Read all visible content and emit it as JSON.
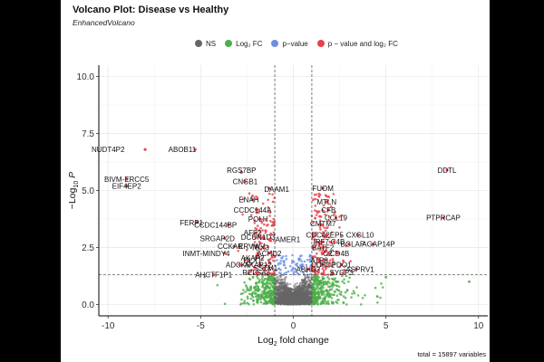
{
  "chart_data": {
    "type": "scatter",
    "title": "Volcano Plot: Disease vs Healthy",
    "subtitle": "EnhancedVolcano",
    "xlabel": "Log2 fold change",
    "ylabel": "-Log10 P",
    "xlim": [
      -10.5,
      10.5
    ],
    "ylim": [
      -0.5,
      10.5
    ],
    "x_ticks": [
      -10,
      -5,
      0,
      5,
      10
    ],
    "y_ticks": [
      0.0,
      2.5,
      5.0,
      7.5,
      10.0
    ],
    "y_tick_labels": [
      "0.0",
      "2.5",
      "5.0",
      "7.5",
      "10.0"
    ],
    "fc_cutoff": 1,
    "p_cutoff_log10": 1.3,
    "legend": [
      {
        "key": "NS",
        "label": "NS",
        "color": "#666666"
      },
      {
        "key": "FC",
        "label": "Log₂ FC",
        "color": "#4daf4a"
      },
      {
        "key": "P",
        "label": "p−value",
        "color": "#6d8ee4"
      },
      {
        "key": "PFC",
        "label": "p − value and log₂ FC",
        "color": "#e8414a"
      }
    ],
    "caption": "total = 15897 variables",
    "labeled_points": [
      {
        "name": "NUDT4P2",
        "x": -8.0,
        "y": 6.8,
        "lx": -10.0,
        "ly": 6.8
      },
      {
        "name": "ABOB11",
        "x": -5.3,
        "y": 6.8,
        "lx": -6.0,
        "ly": 6.8
      },
      {
        "name": "BIVM-ERCC5",
        "x": -9.0,
        "y": 5.5,
        "lx": -9.0,
        "ly": 5.5
      },
      {
        "name": "EIF4EP2",
        "x": -9.0,
        "y": 5.2,
        "lx": -9.0,
        "ly": 5.2
      },
      {
        "name": "RGS7BP",
        "x": -2.8,
        "y": 5.8,
        "lx": -2.8,
        "ly": 5.9
      },
      {
        "name": "CNGB1",
        "x": -2.6,
        "y": 5.4,
        "lx": -2.6,
        "ly": 5.4
      },
      {
        "name": "DAAM1",
        "x": -1.3,
        "y": 5.1,
        "lx": -0.9,
        "ly": 5.05
      },
      {
        "name": "ENAH",
        "x": -2.2,
        "y": 4.6,
        "lx": -2.4,
        "ly": 4.6
      },
      {
        "name": "CCDC144A",
        "x": -2.0,
        "y": 4.15,
        "lx": -2.2,
        "ly": 4.15
      },
      {
        "name": "POLH",
        "x": -1.8,
        "y": 3.75,
        "lx": -1.9,
        "ly": 3.75
      },
      {
        "name": "FERP1",
        "x": -5.2,
        "y": 3.6,
        "lx": -5.5,
        "ly": 3.6
      },
      {
        "name": "CCDC144BP",
        "x": -3.5,
        "y": 3.5,
        "lx": -4.2,
        "ly": 3.5
      },
      {
        "name": "AFF2",
        "x": -2.0,
        "y": 3.15,
        "lx": -2.2,
        "ly": 3.15
      },
      {
        "name": "DCUN1D3",
        "x": -1.6,
        "y": 2.95,
        "lx": -1.9,
        "ly": 2.95
      },
      {
        "name": "SRGAP2D",
        "x": -3.7,
        "y": 2.9,
        "lx": -4.1,
        "ly": 2.9
      },
      {
        "name": "AMER1",
        "x": -1.3,
        "y": 2.85,
        "lx": -0.3,
        "ly": 2.85
      },
      {
        "name": "CCKAR",
        "x": -3.2,
        "y": 2.55,
        "lx": -3.4,
        "ly": 2.55
      },
      {
        "name": "ERVW-1",
        "x": -2.0,
        "y": 2.55,
        "lx": -2.2,
        "ly": 2.55
      },
      {
        "name": "TBX3",
        "x": -1.6,
        "y": 2.5,
        "lx": -1.8,
        "ly": 2.5
      },
      {
        "name": "INMT-MINDY4",
        "x": -3.7,
        "y": 2.25,
        "lx": -4.7,
        "ly": 2.25
      },
      {
        "name": "ACHD2",
        "x": -1.3,
        "y": 2.25,
        "lx": -1.3,
        "ly": 2.25
      },
      {
        "name": "AKAP2",
        "x": -2.0,
        "y": 2.05,
        "lx": -2.2,
        "ly": 2.05
      },
      {
        "name": "DLX1",
        "x": -2.6,
        "y": 1.95,
        "lx": -2.2,
        "ly": 1.95
      },
      {
        "name": "ADCK5",
        "x": -2.9,
        "y": 1.75,
        "lx": -3.0,
        "ly": 1.75
      },
      {
        "name": "AKAP12",
        "x": -1.8,
        "y": 1.75,
        "lx": -1.9,
        "ly": 1.75
      },
      {
        "name": "SSTM1",
        "x": -1.6,
        "y": 1.6,
        "lx": -1.5,
        "ly": 1.6
      },
      {
        "name": "AHCTF1P1",
        "x": -4.3,
        "y": 1.3,
        "lx": -4.3,
        "ly": 1.3
      },
      {
        "name": "RELSA3",
        "x": -2.0,
        "y": 1.4,
        "lx": -2.0,
        "ly": 1.4
      },
      {
        "name": "DDTL",
        "x": 8.3,
        "y": 5.9,
        "lx": 8.3,
        "ly": 5.9
      },
      {
        "name": "FUOM",
        "x": 1.6,
        "y": 5.1,
        "lx": 1.6,
        "ly": 5.1
      },
      {
        "name": "MTLN",
        "x": 1.8,
        "y": 4.5,
        "lx": 1.8,
        "ly": 4.5
      },
      {
        "name": "CFB",
        "x": 1.9,
        "y": 4.15,
        "lx": 1.9,
        "ly": 4.15
      },
      {
        "name": "CCL19",
        "x": 2.3,
        "y": 3.8,
        "lx": 2.3,
        "ly": 3.8
      },
      {
        "name": "CMTM7",
        "x": 1.5,
        "y": 3.5,
        "lx": 1.6,
        "ly": 3.55
      },
      {
        "name": "PTPRCAP",
        "x": 8.1,
        "y": 3.8,
        "lx": 8.1,
        "ly": 3.8
      },
      {
        "name": "CDC42EP5",
        "x": 1.8,
        "y": 3.05,
        "lx": 1.7,
        "ly": 3.05
      },
      {
        "name": "CXGL10",
        "x": 3.5,
        "y": 3.05,
        "lx": 3.6,
        "ly": 3.05
      },
      {
        "name": "IRF7",
        "x": 1.6,
        "y": 2.75,
        "lx": 1.5,
        "ly": 2.75
      },
      {
        "name": "C4B",
        "x": 2.2,
        "y": 2.75,
        "lx": 2.4,
        "ly": 2.75
      },
      {
        "name": "BGLAP",
        "x": 3.0,
        "y": 2.65,
        "lx": 3.2,
        "ly": 2.65
      },
      {
        "name": "AGAP14P",
        "x": 4.3,
        "y": 2.65,
        "lx": 4.6,
        "ly": 2.65
      },
      {
        "name": "BATF2",
        "x": 1.6,
        "y": 2.5,
        "lx": 1.6,
        "ly": 2.5
      },
      {
        "name": "C2",
        "x": 1.9,
        "y": 2.25,
        "lx": 1.85,
        "ly": 2.25
      },
      {
        "name": "CD4B",
        "x": 2.4,
        "y": 2.25,
        "lx": 2.5,
        "ly": 2.25
      },
      {
        "name": "ATP8",
        "x": 1.4,
        "y": 1.95,
        "lx": 1.4,
        "ly": 1.95
      },
      {
        "name": "PDO1",
        "x": 2.6,
        "y": 1.75,
        "lx": 2.6,
        "ly": 1.75
      },
      {
        "name": "CD5C2",
        "x": 1.6,
        "y": 1.75,
        "lx": 1.6,
        "ly": 1.75
      },
      {
        "name": "ABHD2",
        "x": 0.8,
        "y": 1.55,
        "lx": 0.8,
        "ly": 1.55
      },
      {
        "name": "SYCP3",
        "x": 2.1,
        "y": 1.4,
        "lx": 2.6,
        "ly": 1.4
      },
      {
        "name": "ASPRV1",
        "x": 3.4,
        "y": 1.55,
        "lx": 3.6,
        "ly": 1.55
      }
    ],
    "extra_points": [
      {
        "x": 9.5,
        "y": 1.0,
        "group": "FC"
      },
      {
        "x": 5.0,
        "y": 1.2,
        "group": "FC"
      }
    ]
  }
}
